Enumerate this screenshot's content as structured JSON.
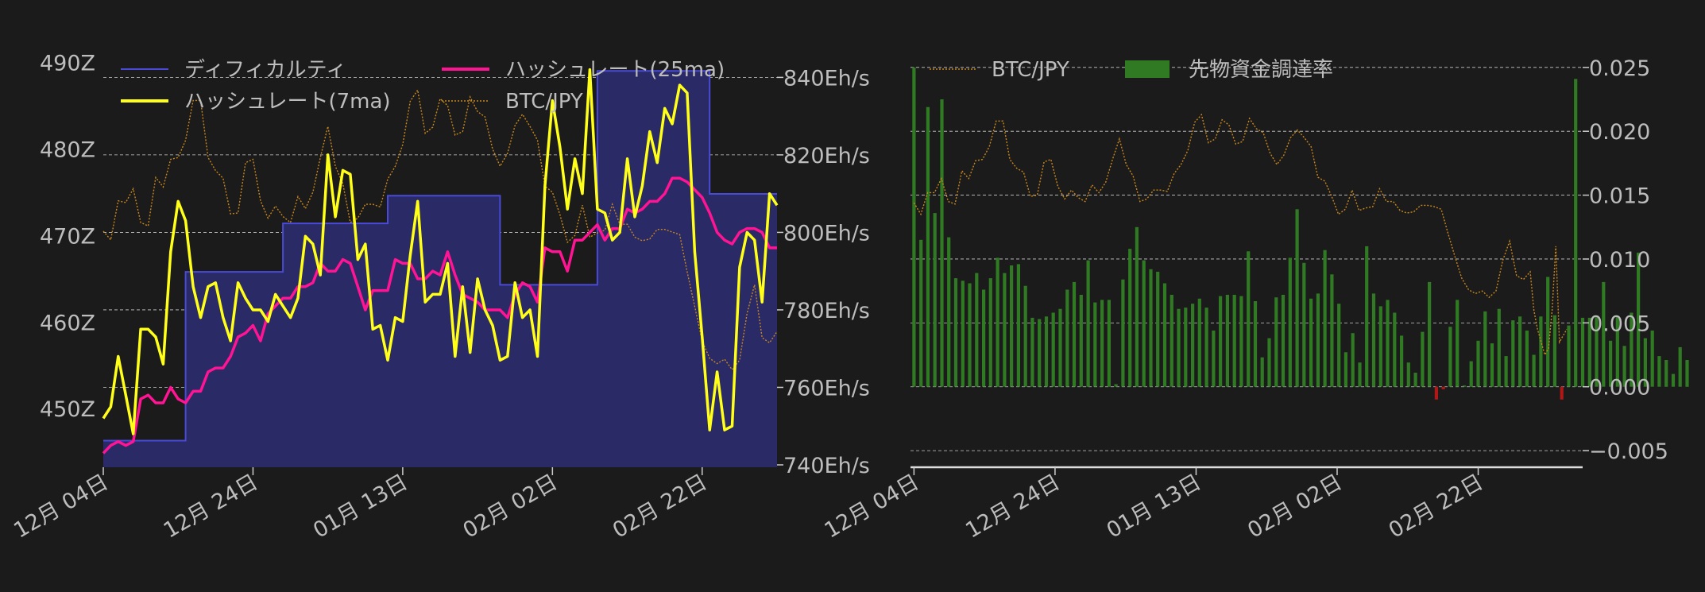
{
  "colors": {
    "background": "#1b1b1b",
    "difficulty_line": "#4a4ad8",
    "difficulty_fill": "#2a2a66",
    "hashrate_7ma": "#ffff1a",
    "hashrate_25ma": "#ff1493",
    "btc_jpy": "#c8871e",
    "funding_pos": "#2f7a22",
    "funding_neg": "#b01818",
    "text": "#bdbdbd",
    "grid": "#cccccc"
  },
  "chart_data": [
    {
      "type": "line",
      "title": "",
      "x_ticks": [
        "12月 04日",
        "12月 24日",
        "01月 13日",
        "02月 02日",
        "02月 22日"
      ],
      "x_tick_index": [
        0,
        20,
        40,
        60,
        80
      ],
      "x_range": [
        0,
        90
      ],
      "left_axis": {
        "ticks": [
          "450Z",
          "460Z",
          "470Z",
          "480Z",
          "490Z"
        ],
        "tick_values": [
          450,
          460,
          470,
          480,
          490
        ],
        "range": [
          443.5,
          490.5
        ]
      },
      "right_axis": {
        "ticks": [
          "740Eh/s",
          "760Eh/s",
          "780Eh/s",
          "800Eh/s",
          "820Eh/s",
          "840Eh/s"
        ],
        "tick_values": [
          740,
          760,
          780,
          800,
          820,
          840
        ],
        "range": [
          740,
          845
        ]
      },
      "legend": [
        {
          "label": "ディフィカルティ",
          "series": "difficulty"
        },
        {
          "label": "ハッシュレート(25ma)",
          "series": "hashrate_25ma"
        },
        {
          "label": "ハッシュレート(7ma)",
          "series": "hashrate_7ma"
        },
        {
          "label": "BTC/JPY",
          "series": "btc_jpy"
        }
      ],
      "series": {
        "difficulty": [
          {
            "x": 0,
            "y": 446.3
          },
          {
            "x": 11,
            "y": 446.3
          },
          {
            "x": 11,
            "y": 465.8
          },
          {
            "x": 24,
            "y": 465.8
          },
          {
            "x": 24,
            "y": 471.4
          },
          {
            "x": 38,
            "y": 471.4
          },
          {
            "x": 38,
            "y": 474.6
          },
          {
            "x": 53,
            "y": 474.6
          },
          {
            "x": 53,
            "y": 464.3
          },
          {
            "x": 66,
            "y": 464.3
          },
          {
            "x": 66,
            "y": 489.0
          },
          {
            "x": 81,
            "y": 489.0
          },
          {
            "x": 81,
            "y": 474.8
          },
          {
            "x": 90,
            "y": 474.8
          }
        ],
        "hashrate_7ma": [
          752,
          755,
          768,
          758,
          748,
          775,
          775,
          773,
          766,
          795,
          808,
          803,
          786,
          778,
          786,
          787,
          778,
          772,
          787,
          783,
          780,
          780,
          777,
          784,
          781,
          778,
          783,
          799,
          797,
          789,
          820,
          804,
          816,
          815,
          793,
          797,
          775,
          776,
          767,
          778,
          777,
          794,
          808,
          782,
          784,
          784,
          792,
          768,
          786,
          769,
          788,
          780,
          776,
          767,
          768,
          787,
          778,
          780,
          768,
          812,
          834,
          822,
          806,
          819,
          810,
          842,
          806,
          805,
          798,
          800,
          819,
          804,
          812,
          826,
          818,
          832,
          828,
          838,
          836,
          795,
          773,
          749,
          764,
          749,
          750,
          791,
          800,
          798,
          782,
          810,
          807
        ],
        "hashrate_25ma": [
          743,
          745,
          746,
          745,
          746,
          757,
          758,
          756,
          756,
          760,
          757,
          756,
          759,
          759,
          764,
          765,
          765,
          768,
          773,
          774,
          776,
          772,
          779,
          781,
          783,
          783,
          786,
          786,
          787,
          792,
          790,
          790,
          793,
          792,
          786,
          780,
          785,
          785,
          785,
          793,
          792,
          792,
          788,
          788,
          790,
          789,
          795,
          789,
          784,
          783,
          782,
          780,
          780,
          780,
          778,
          784,
          787,
          786,
          782,
          796,
          795,
          795,
          790,
          798,
          798,
          800,
          802,
          798,
          801,
          801,
          806,
          805,
          806,
          808,
          808,
          810,
          814,
          814,
          813,
          811,
          809,
          805,
          800,
          798,
          797,
          800,
          801,
          801,
          800,
          796,
          796
        ],
        "btc_jpy_left_scale": [
          470.5,
          469.5,
          474.0,
          473.8,
          475.4,
          471.5,
          471.1,
          476.7,
          475.6,
          478.8,
          479.0,
          481.0,
          485.6,
          485.6,
          479.0,
          477.5,
          476.6,
          472.5,
          472.6,
          478.4,
          478.8,
          474.0,
          472.0,
          473.4,
          472.2,
          471.5,
          474.5,
          473.1,
          475.0,
          479.0,
          482.6,
          478.0,
          476.0,
          471.5,
          472.0,
          473.6,
          473.6,
          473.3,
          476.5,
          478.0,
          480.5,
          485.5,
          486.8,
          481.8,
          482.5,
          485.8,
          485.0,
          481.6,
          482.0,
          486.0,
          484.3,
          483.7,
          480.0,
          478.0,
          479.5,
          482.7,
          484.0,
          482.6,
          481.0,
          475.7,
          475.0,
          472.4,
          469.2,
          470.0,
          473.5,
          469.8,
          470.3,
          470.6,
          473.6,
          471.3,
          471.3,
          469.8,
          469.4,
          469.6,
          470.7,
          470.7,
          470.4,
          470.1,
          465.8,
          461.8,
          457.8,
          455.8,
          455.2,
          455.7,
          454.5,
          455.6,
          461.0,
          464.3,
          458.2,
          457.6,
          458.9
        ]
      }
    },
    {
      "type": "bar",
      "title": "",
      "x_ticks": [
        "12月 04日",
        "12月 24日",
        "01月 13日",
        "02月 02日",
        "02月 22日"
      ],
      "x_tick_index": [
        0,
        20,
        40,
        60,
        80
      ],
      "x_range": [
        -0.5,
        96
      ],
      "y_axis": {
        "ticks": [
          "−0.005",
          "0.000",
          "0.005",
          "0.010",
          "0.015",
          "0.020",
          "0.025"
        ],
        "tick_values": [
          -0.005,
          0.0,
          0.005,
          0.01,
          0.015,
          0.02,
          0.025
        ],
        "range": [
          -0.0063,
          0.0253
        ]
      },
      "legend": [
        {
          "label": "BTC/JPY",
          "series": "btc_jpy"
        },
        {
          "label": "先物資金調達率",
          "series": "funding_rate"
        }
      ],
      "series": {
        "funding_rate": [
          0.025,
          0.0115,
          0.0219,
          0.0136,
          0.0225,
          0.0117,
          0.0085,
          0.0083,
          0.0081,
          0.0089,
          0.0076,
          0.0085,
          0.0101,
          0.0089,
          0.0095,
          0.0096,
          0.0079,
          0.0054,
          0.0053,
          0.0055,
          0.0058,
          0.0061,
          0.0076,
          0.0082,
          0.0072,
          0.0099,
          0.0066,
          0.0068,
          0.0068,
          0.0002,
          0.0084,
          0.0108,
          0.0125,
          0.0099,
          0.0092,
          0.009,
          0.0081,
          0.0072,
          0.0061,
          0.0062,
          0.0065,
          0.0069,
          0.0062,
          0.0044,
          0.0071,
          0.0072,
          0.0072,
          0.0071,
          0.0106,
          0.0067,
          0.0023,
          0.0038,
          0.007,
          0.0072,
          0.0101,
          0.0139,
          0.0097,
          0.0069,
          0.0073,
          0.0107,
          0.0088,
          0.0065,
          0.0027,
          0.0042,
          0.0019,
          0.011,
          0.0073,
          0.0063,
          0.0068,
          0.0058,
          0.004,
          0.0019,
          0.0011,
          0.0043,
          0.0082,
          -0.001,
          -0.0002,
          0.0047,
          0.0068,
          0.0001,
          0.002,
          0.0036,
          0.0059,
          0.0034,
          0.0061,
          0.0024,
          0.0052,
          0.0055,
          0.0044,
          0.0025,
          0.0055,
          0.0086,
          0.0056,
          -0.001,
          0.0048,
          0.0241,
          0.0054,
          0.0054,
          0.0055,
          0.0082,
          0.0036,
          0.0055,
          0.0032,
          0.0058,
          0.0105,
          0.0038,
          0.0044,
          0.0024,
          0.0021,
          0.001,
          0.0031,
          0.0021
        ],
        "btc_jpy_right_scale": [
          0.0144,
          0.0135,
          0.0152,
          0.0152,
          0.0163,
          0.0145,
          0.0143,
          0.0169,
          0.0163,
          0.0177,
          0.0178,
          0.0188,
          0.0208,
          0.0208,
          0.0178,
          0.0171,
          0.0168,
          0.0149,
          0.015,
          0.0176,
          0.0178,
          0.0157,
          0.0147,
          0.0154,
          0.0148,
          0.0145,
          0.0158,
          0.0152,
          0.016,
          0.0178,
          0.0194,
          0.0174,
          0.0165,
          0.0145,
          0.0147,
          0.0154,
          0.0154,
          0.0153,
          0.0167,
          0.0174,
          0.0185,
          0.0207,
          0.0213,
          0.0191,
          0.0194,
          0.0209,
          0.0205,
          0.019,
          0.0192,
          0.021,
          0.0202,
          0.0199,
          0.0183,
          0.0174,
          0.0181,
          0.0195,
          0.0201,
          0.0195,
          0.0188,
          0.0164,
          0.0161,
          0.0149,
          0.0135,
          0.0139,
          0.0154,
          0.0138,
          0.014,
          0.0141,
          0.0155,
          0.0145,
          0.0145,
          0.0138,
          0.0136,
          0.0137,
          0.0142,
          0.0142,
          0.0141,
          0.0139,
          0.012,
          0.0102,
          0.0085,
          0.0076,
          0.0073,
          0.0075,
          0.007,
          0.0075,
          0.0099,
          0.0114,
          0.0087,
          0.0084,
          0.009
        ],
        "btc_jpy_tail": [
          0.006,
          0.0045,
          0.0035,
          0.0025,
          0.003,
          0.006,
          0.011,
          0.0035,
          0.004,
          0.0045
        ]
      }
    }
  ]
}
